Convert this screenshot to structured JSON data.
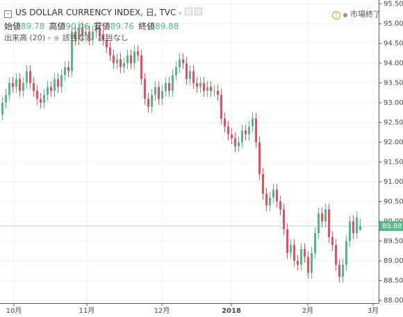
{
  "header": {
    "title": "US DOLLAR CURRENCY INDEX, 日, TVC",
    "ohlc": [
      {
        "label": "始値",
        "value": "89.78"
      },
      {
        "label": "高値",
        "value": "90.06"
      },
      {
        "label": "安値",
        "value": "89.76"
      },
      {
        "label": "終値",
        "value": "89.88"
      }
    ],
    "volume": "出来高 (20)",
    "volume_values": [
      "該当なし",
      "該当なし"
    ],
    "status": "市場終了"
  },
  "chart_data": {
    "type": "candlestick",
    "up_color": "#53b987",
    "down_color": "#eb4d5c",
    "xlim": [
      -0.6,
      108.4
    ],
    "xticks": [
      {
        "value": 3.4,
        "label": "10月"
      },
      {
        "value": 24.4,
        "label": "11月"
      },
      {
        "value": 46,
        "label": "12月"
      },
      {
        "value": 66,
        "label": "2018"
      },
      {
        "value": 88,
        "label": "2月"
      },
      {
        "value": 106.8,
        "label": "3月"
      }
    ],
    "ylim": [
      87.93,
      95.6
    ],
    "yticks": [
      {
        "value": 88,
        "label": "88.00"
      },
      {
        "value": 88.5,
        "label": "88.50"
      },
      {
        "value": 89,
        "label": "89.00"
      },
      {
        "value": 89.5,
        "label": "89.50"
      },
      {
        "value": 90,
        "label": "90.00"
      },
      {
        "value": 90.5,
        "label": "90.50"
      },
      {
        "value": 91,
        "label": "91.00"
      },
      {
        "value": 91.5,
        "label": "91.50"
      },
      {
        "value": 92,
        "label": "92.00"
      },
      {
        "value": 92.5,
        "label": "92.50"
      },
      {
        "value": 93,
        "label": "93.00"
      },
      {
        "value": 93.5,
        "label": "93.50"
      },
      {
        "value": 94,
        "label": "94.00"
      },
      {
        "value": 94.5,
        "label": "94.50"
      },
      {
        "value": 95,
        "label": "95.00"
      },
      {
        "value": 95.5,
        "label": "95.50"
      }
    ],
    "grid": true,
    "open": [
      92.7,
      93.0,
      93.2,
      93.5,
      93.4,
      93.6,
      93.3,
      93.5,
      93.8,
      93.5,
      93.3,
      93.1,
      93.0,
      93.2,
      93.4,
      93.3,
      93.6,
      93.4,
      93.7,
      93.9,
      93.8,
      94.8,
      94.6,
      94.9,
      94.7,
      94.8,
      94.6,
      94.8,
      94.9,
      94.7,
      94.6,
      94.4,
      94.2,
      94.0,
      94.1,
      93.9,
      94.0,
      94.2,
      94.0,
      94.3,
      94.2,
      93.6,
      93.1,
      92.9,
      93.2,
      93.4,
      93.1,
      93.3,
      93.5,
      93.3,
      93.7,
      93.9,
      94.1,
      94.0,
      93.6,
      93.8,
      93.5,
      93.4,
      93.5,
      93.3,
      93.4,
      93.3,
      93.3,
      93.2,
      92.6,
      92.4,
      92.2,
      92.1,
      91.9,
      92.0,
      92.3,
      92.2,
      92.4,
      92.6,
      92.0,
      91.2,
      90.7,
      90.4,
      90.6,
      90.8,
      90.5,
      90.3,
      89.8,
      89.2,
      89.4,
      89.0,
      88.9,
      89.3,
      89.1,
      88.7,
      89.2,
      89.7,
      90.2,
      90.0,
      90.3,
      89.6,
      89.4,
      88.9,
      88.6,
      88.9,
      89.5,
      90.0,
      89.7,
      89.78
    ],
    "high": [
      93.15,
      93.35,
      93.65,
      93.65,
      93.75,
      93.75,
      93.65,
      93.95,
      93.95,
      93.65,
      93.45,
      93.25,
      93.35,
      93.55,
      93.55,
      93.75,
      93.75,
      93.85,
      94.05,
      94.05,
      94.95,
      94.95,
      95.05,
      95.05,
      94.95,
      94.95,
      94.95,
      95.05,
      95.05,
      94.85,
      94.75,
      94.55,
      94.35,
      94.25,
      94.25,
      94.15,
      94.35,
      94.35,
      94.45,
      94.45,
      94.35,
      93.75,
      93.25,
      93.35,
      93.55,
      93.55,
      93.45,
      93.65,
      93.65,
      93.85,
      94.05,
      94.25,
      94.25,
      94.15,
      93.95,
      93.95,
      93.65,
      93.65,
      93.65,
      93.55,
      93.55,
      93.45,
      93.45,
      93.35,
      92.75,
      92.55,
      92.35,
      92.25,
      92.15,
      92.45,
      92.45,
      92.55,
      92.75,
      92.75,
      92.15,
      91.35,
      90.85,
      90.75,
      90.95,
      90.95,
      90.65,
      90.45,
      89.95,
      89.55,
      89.55,
      89.15,
      89.45,
      89.45,
      89.25,
      89.35,
      89.85,
      90.35,
      90.35,
      90.45,
      90.45,
      89.75,
      89.55,
      89.05,
      89.05,
      89.65,
      90.15,
      90.15,
      90.25,
      90.06
    ],
    "low": [
      92.55,
      92.85,
      93.05,
      93.25,
      93.25,
      93.15,
      93.15,
      93.35,
      93.35,
      93.15,
      92.95,
      92.85,
      92.85,
      93.05,
      93.15,
      93.15,
      93.25,
      93.25,
      93.55,
      93.65,
      93.65,
      94.45,
      94.45,
      94.55,
      94.55,
      94.45,
      94.45,
      94.65,
      94.55,
      94.45,
      94.25,
      94.05,
      93.85,
      93.85,
      93.75,
      93.75,
      93.85,
      93.85,
      93.85,
      94.05,
      93.45,
      92.95,
      92.75,
      92.75,
      93.05,
      92.95,
      92.95,
      93.15,
      93.15,
      93.15,
      93.55,
      93.75,
      93.85,
      93.45,
      93.45,
      93.35,
      93.25,
      93.25,
      93.15,
      93.15,
      93.15,
      93.15,
      93.05,
      92.45,
      92.25,
      92.05,
      91.95,
      91.75,
      91.75,
      91.85,
      92.05,
      92.05,
      92.25,
      91.85,
      91.05,
      90.55,
      90.25,
      90.25,
      90.45,
      90.35,
      90.15,
      89.65,
      89.05,
      89.05,
      88.85,
      88.75,
      88.75,
      88.95,
      88.55,
      88.55,
      89.05,
      89.55,
      89.85,
      89.85,
      89.45,
      89.25,
      88.75,
      88.45,
      88.45,
      88.75,
      89.35,
      89.55,
      89.55,
      89.76
    ],
    "close": [
      93.0,
      93.2,
      93.5,
      93.4,
      93.6,
      93.3,
      93.5,
      93.8,
      93.5,
      93.3,
      93.1,
      93.0,
      93.2,
      93.4,
      93.3,
      93.6,
      93.4,
      93.7,
      93.9,
      93.8,
      94.8,
      94.6,
      94.9,
      94.7,
      94.8,
      94.6,
      94.8,
      94.9,
      94.7,
      94.6,
      94.4,
      94.2,
      94.0,
      94.1,
      93.9,
      94.0,
      94.2,
      94.0,
      94.3,
      94.2,
      93.6,
      93.1,
      92.9,
      93.2,
      93.4,
      93.1,
      93.3,
      93.5,
      93.3,
      93.7,
      93.9,
      94.1,
      94.0,
      93.6,
      93.8,
      93.5,
      93.4,
      93.5,
      93.3,
      93.4,
      93.3,
      93.3,
      93.2,
      92.6,
      92.4,
      92.2,
      92.1,
      91.9,
      92.0,
      92.3,
      92.2,
      92.4,
      92.6,
      92.0,
      91.2,
      90.7,
      90.4,
      90.6,
      90.8,
      90.5,
      90.3,
      89.8,
      89.2,
      89.4,
      89.0,
      88.9,
      89.3,
      89.1,
      88.7,
      89.2,
      89.7,
      90.2,
      90.0,
      90.3,
      89.6,
      89.4,
      88.9,
      88.6,
      88.9,
      89.5,
      90.0,
      89.7,
      90.1,
      89.88
    ]
  }
}
